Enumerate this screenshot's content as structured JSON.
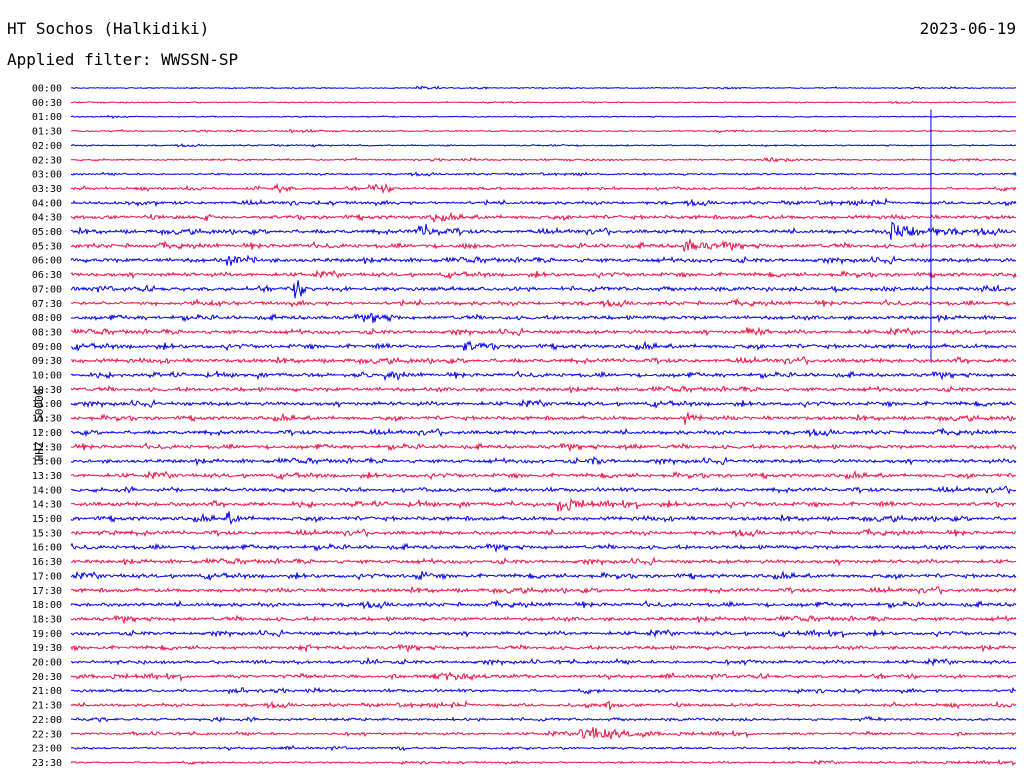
{
  "header": {
    "station": "HT Sochos (Halkidiki)",
    "date": "2023-06-19",
    "filter": "Applied filter: WWSSN-SP"
  },
  "chart_data": {
    "type": "line",
    "title": "HT Sochos (Halkidiki)",
    "subtitle": "Applied filter: WWSSN-SP",
    "ylabel": "HHZ - 50000",
    "xlabel": "",
    "grid": false,
    "colors": [
      "#0000ee",
      "#ee1144"
    ],
    "row_labels": [
      "00:00",
      "00:30",
      "01:00",
      "01:30",
      "02:00",
      "02:30",
      "03:00",
      "03:30",
      "04:00",
      "04:30",
      "05:00",
      "05:30",
      "06:00",
      "06:30",
      "07:00",
      "07:30",
      "08:00",
      "08:30",
      "09:00",
      "09:30",
      "10:00",
      "10:30",
      "11:00",
      "11:30",
      "12:00",
      "12:30",
      "13:00",
      "13:30",
      "14:00",
      "14:30",
      "15:00",
      "15:30",
      "16:00",
      "16:30",
      "17:00",
      "17:30",
      "18:00",
      "18:30",
      "19:00",
      "19:30",
      "20:00",
      "20:30",
      "21:00",
      "21:30",
      "22:00",
      "22:30",
      "23:00",
      "23:30"
    ],
    "row_noise": [
      1,
      1,
      1,
      1.2,
      1.2,
      1.5,
      1.5,
      2,
      2.5,
      3,
      3,
      3.2,
      3.2,
      3,
      3.2,
      3,
      3,
      3,
      3.2,
      3.2,
      3,
      3,
      3,
      3,
      3,
      3,
      3,
      3,
      3,
      3.2,
      3.2,
      3,
      3,
      3,
      3,
      3,
      3,
      3,
      2.8,
      2.8,
      2.6,
      2.6,
      2.4,
      2.4,
      2.2,
      2,
      1.8,
      1.6
    ],
    "events": [
      {
        "row": 0,
        "minute": 11,
        "amp": 3,
        "dur": 1
      },
      {
        "row": 3,
        "minute": 7,
        "amp": 3,
        "dur": 1
      },
      {
        "row": 5,
        "minute": 22,
        "amp": 5,
        "dur": 1
      },
      {
        "row": 7,
        "minute": 6.5,
        "amp": 9,
        "dur": 0.6
      },
      {
        "row": 7,
        "minute": 9.5,
        "amp": 8,
        "dur": 1
      },
      {
        "row": 9,
        "minute": 11.5,
        "amp": 8,
        "dur": 0.4
      },
      {
        "row": 10,
        "minute": 11,
        "amp": 10,
        "dur": 1.5
      },
      {
        "row": 10,
        "minute": 26,
        "amp": 14,
        "dur": 2.5
      },
      {
        "row": 11,
        "minute": 19.5,
        "amp": 9,
        "dur": 1.5
      },
      {
        "row": 12,
        "minute": 5,
        "amp": 7,
        "dur": 1
      },
      {
        "row": 14,
        "minute": 7,
        "amp": 14,
        "dur": 0.8
      },
      {
        "row": 16,
        "minute": 9.5,
        "amp": 6,
        "dur": 1
      },
      {
        "row": 17,
        "minute": 21.5,
        "amp": 8,
        "dur": 0.8
      },
      {
        "row": 18,
        "minute": 12.5,
        "amp": 7,
        "dur": 1.2
      },
      {
        "row": 20,
        "minute": 10,
        "amp": 9,
        "dur": 0.6
      },
      {
        "row": 23,
        "minute": 19.5,
        "amp": 7,
        "dur": 0.6
      },
      {
        "row": 25,
        "minute": 17.5,
        "amp": 6,
        "dur": 0.8
      },
      {
        "row": 26,
        "minute": 16.5,
        "amp": 6,
        "dur": 0.8
      },
      {
        "row": 29,
        "minute": 15.5,
        "amp": 10,
        "dur": 1.2
      },
      {
        "row": 30,
        "minute": 5,
        "amp": 6,
        "dur": 0.8
      },
      {
        "row": 34,
        "minute": 11,
        "amp": 8,
        "dur": 0.5
      },
      {
        "row": 40,
        "minute": 21.5,
        "amp": 6,
        "dur": 0.4
      },
      {
        "row": 41,
        "minute": 11.5,
        "amp": 4,
        "dur": 4
      },
      {
        "row": 43,
        "minute": 17,
        "amp": 7,
        "dur": 0.6
      },
      {
        "row": 45,
        "minute": 16.2,
        "amp": 12,
        "dur": 2.5
      }
    ],
    "spike": {
      "row_start": 1.5,
      "row_end": 19,
      "minute": 27.3
    }
  }
}
